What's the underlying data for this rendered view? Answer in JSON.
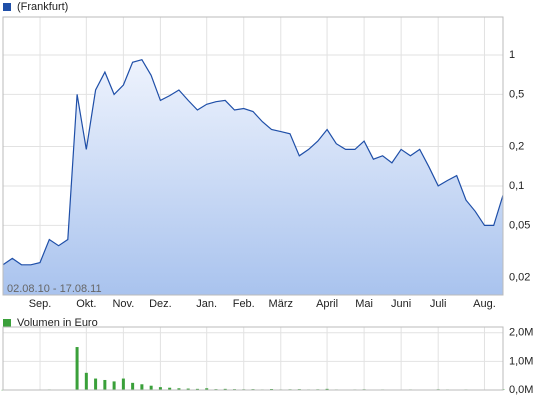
{
  "chart_data": [
    {
      "type": "line",
      "log_scale": true,
      "grid": true,
      "fill": true,
      "annotation": "02.08.10 - 17.08.11",
      "categories": [
        null,
        null,
        null,
        null,
        "Sep.",
        null,
        null,
        null,
        null,
        "Okt.",
        null,
        null,
        null,
        "Nov.",
        null,
        null,
        null,
        "Dez.",
        null,
        null,
        null,
        null,
        "Jan.",
        null,
        null,
        null,
        "Feb.",
        null,
        null,
        null,
        "März",
        null,
        null,
        null,
        null,
        "April",
        null,
        null,
        null,
        "Mai",
        null,
        null,
        null,
        "Juni",
        null,
        null,
        null,
        "Juli",
        null,
        null,
        null,
        null,
        "Aug.",
        null,
        null
      ],
      "series": [
        {
          "name": "(Frankfurt)",
          "color": "#1f4fa8",
          "values": [
            0.025,
            0.028,
            0.025,
            0.025,
            0.026,
            0.039,
            0.035,
            0.039,
            0.5,
            0.19,
            0.54,
            0.74,
            0.5,
            0.59,
            0.88,
            0.92,
            0.7,
            0.45,
            0.49,
            0.54,
            0.45,
            0.38,
            0.42,
            0.44,
            0.45,
            0.38,
            0.39,
            0.37,
            0.31,
            0.27,
            0.26,
            0.25,
            0.17,
            0.19,
            0.22,
            0.27,
            0.21,
            0.19,
            0.19,
            0.22,
            0.16,
            0.17,
            0.15,
            0.19,
            0.17,
            0.19,
            0.14,
            0.1,
            0.11,
            0.12,
            0.078,
            0.064,
            0.05,
            0.05,
            0.085
          ]
        }
      ],
      "ylim": [
        0.0147,
        1.95
      ],
      "yticks": [
        {
          "value": 0.02,
          "label": "0,02"
        },
        {
          "value": 0.05,
          "label": "0,05"
        },
        {
          "value": 0.1,
          "label": "0,1"
        },
        {
          "value": 0.2,
          "label": "0,2"
        },
        {
          "value": 0.5,
          "label": "0,5"
        },
        1
      ]
    },
    {
      "type": "bar",
      "grid": true,
      "series": [
        {
          "name": "Volumen in Euro",
          "color": "#3aa03a",
          "values": [
            5000,
            3000,
            4000,
            2000,
            6000,
            20000,
            10000,
            15000,
            1500000,
            600000,
            400000,
            350000,
            300000,
            400000,
            250000,
            200000,
            150000,
            100000,
            80000,
            60000,
            50000,
            40000,
            60000,
            30000,
            40000,
            30000,
            25000,
            30000,
            20000,
            35000,
            20000,
            25000,
            30000,
            20000,
            25000,
            40000,
            20000,
            15000,
            20000,
            25000,
            15000,
            20000,
            15000,
            10000,
            20000,
            15000,
            10000,
            25000,
            20000,
            15000,
            20000,
            10000,
            15000,
            10000,
            20000
          ]
        }
      ],
      "ylim": [
        0,
        2200000
      ],
      "yticks": [
        {
          "value": 0,
          "label": "0,0M"
        },
        {
          "value": 1000000,
          "label": "1,0M"
        },
        {
          "value": 2000000,
          "label": "2,0M"
        }
      ]
    }
  ]
}
